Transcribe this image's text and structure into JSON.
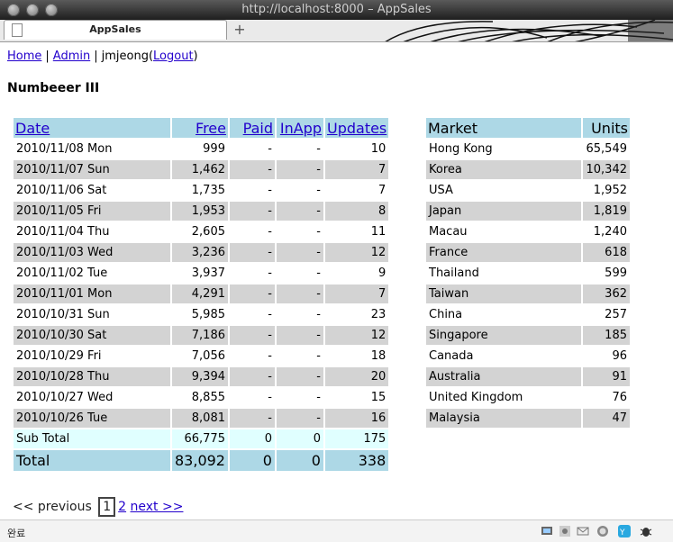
{
  "window": {
    "title": "http://localhost:8000 – AppSales"
  },
  "tab": {
    "title": "AppSales",
    "new_tab_symbol": "+"
  },
  "nav": {
    "home": "Home",
    "admin": "Admin",
    "user": "jmjeong",
    "logout": "Logout"
  },
  "page": {
    "title": "Numbeeer III"
  },
  "sales_table": {
    "headers": [
      "Date",
      "Free",
      "Paid",
      "InApp",
      "Updates"
    ],
    "rows": [
      [
        "2010/11/08 Mon",
        "999",
        "-",
        "-",
        "10"
      ],
      [
        "2010/11/07 Sun",
        "1,462",
        "-",
        "-",
        "7"
      ],
      [
        "2010/11/06 Sat",
        "1,735",
        "-",
        "-",
        "7"
      ],
      [
        "2010/11/05 Fri",
        "1,953",
        "-",
        "-",
        "8"
      ],
      [
        "2010/11/04 Thu",
        "2,605",
        "-",
        "-",
        "11"
      ],
      [
        "2010/11/03 Wed",
        "3,236",
        "-",
        "-",
        "12"
      ],
      [
        "2010/11/02 Tue",
        "3,937",
        "-",
        "-",
        "9"
      ],
      [
        "2010/11/01 Mon",
        "4,291",
        "-",
        "-",
        "7"
      ],
      [
        "2010/10/31 Sun",
        "5,985",
        "-",
        "-",
        "23"
      ],
      [
        "2010/10/30 Sat",
        "7,186",
        "-",
        "-",
        "12"
      ],
      [
        "2010/10/29 Fri",
        "7,056",
        "-",
        "-",
        "18"
      ],
      [
        "2010/10/28 Thu",
        "9,394",
        "-",
        "-",
        "20"
      ],
      [
        "2010/10/27 Wed",
        "8,855",
        "-",
        "-",
        "15"
      ],
      [
        "2010/10/26 Tue",
        "8,081",
        "-",
        "-",
        "16"
      ]
    ],
    "subtotal": [
      "Sub Total",
      "66,775",
      "0",
      "0",
      "175"
    ],
    "total": [
      "Total",
      "83,092",
      "0",
      "0",
      "338"
    ]
  },
  "market_table": {
    "headers": [
      "Market",
      "Units"
    ],
    "rows": [
      [
        "Hong Kong",
        "65,549"
      ],
      [
        "Korea",
        "10,342"
      ],
      [
        "USA",
        "1,952"
      ],
      [
        "Japan",
        "1,819"
      ],
      [
        "Macau",
        "1,240"
      ],
      [
        "France",
        "618"
      ],
      [
        "Thailand",
        "599"
      ],
      [
        "Taiwan",
        "362"
      ],
      [
        "China",
        "257"
      ],
      [
        "Singapore",
        "185"
      ],
      [
        "Canada",
        "96"
      ],
      [
        "Australia",
        "91"
      ],
      [
        "United Kingdom",
        "76"
      ],
      [
        "Malaysia",
        "47"
      ]
    ]
  },
  "pager": {
    "previous": "<< previous",
    "current": "1",
    "page2": "2",
    "next": "next >>"
  },
  "status": {
    "text": "완료",
    "icons": [
      "screen-icon",
      "settings-grid-icon",
      "mail-icon",
      "chat-bubble-icon",
      "ye-icon",
      "bug-icon"
    ]
  },
  "colors": {
    "header_bg": "#add8e6",
    "row_alt_bg": "#d3d3d3",
    "subtotal_bg": "#e0ffff",
    "link": "#2200cc"
  }
}
